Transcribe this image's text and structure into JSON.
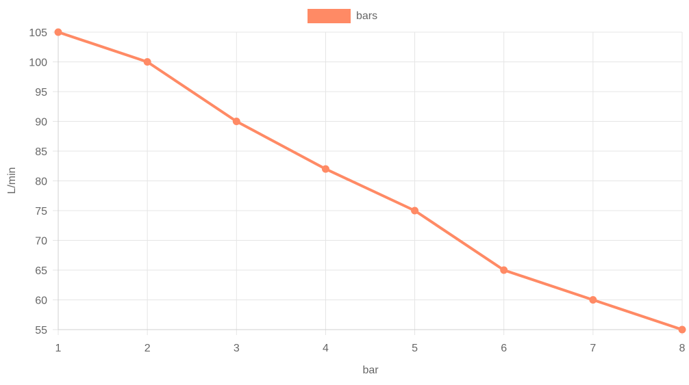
{
  "chart_data": {
    "type": "line",
    "x": [
      1,
      2,
      3,
      4,
      5,
      6,
      7,
      8
    ],
    "series": [
      {
        "name": "bars",
        "values": [
          105,
          100,
          90,
          82,
          75,
          65,
          60,
          55
        ],
        "color": "#ff8a65"
      }
    ],
    "title": "",
    "xlabel": "bar",
    "ylabel": "L/min",
    "xlim": [
      1,
      8
    ],
    "ylim": [
      55,
      105
    ],
    "y_ticks": [
      55,
      60,
      65,
      70,
      75,
      80,
      85,
      90,
      95,
      100,
      105
    ],
    "x_ticks": [
      1,
      2,
      3,
      4,
      5,
      6,
      7,
      8
    ],
    "grid": true,
    "legend": "top-center",
    "colors": {
      "grid": "#e5e5e5",
      "axis": "#d0d0d0",
      "text": "#666666"
    }
  }
}
